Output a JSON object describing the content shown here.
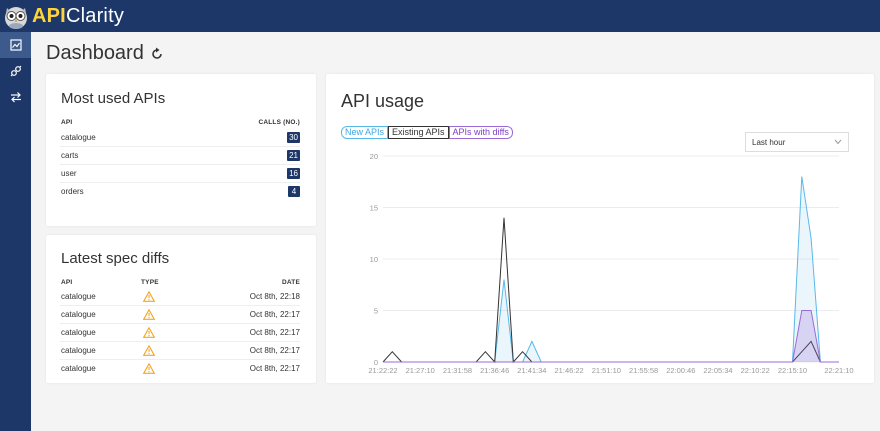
{
  "app": {
    "brand_bold": "API",
    "brand_rest": "Clarity"
  },
  "nav": [
    {
      "icon": "dashboard-icon",
      "active": true
    },
    {
      "icon": "plug-icon",
      "active": false
    },
    {
      "icon": "swap-arrows-icon",
      "active": false
    }
  ],
  "page": {
    "title": "Dashboard"
  },
  "most_used": {
    "title": "Most used APIs",
    "col_api": "API",
    "col_calls": "CALLS (NO.)",
    "rows": [
      {
        "name": "catalogue",
        "calls": "30"
      },
      {
        "name": "carts",
        "calls": "21"
      },
      {
        "name": "user",
        "calls": "16"
      },
      {
        "name": "orders",
        "calls": "4"
      }
    ]
  },
  "spec_diffs": {
    "title": "Latest spec diffs",
    "col_api": "API",
    "col_type": "TYPE",
    "col_date": "DATE",
    "rows": [
      {
        "name": "catalogue",
        "type": "warning-icon",
        "date": "Oct 8th, 22:18"
      },
      {
        "name": "catalogue",
        "type": "warning-icon",
        "date": "Oct 8th, 22:17"
      },
      {
        "name": "catalogue",
        "type": "warning-icon",
        "date": "Oct 8th, 22:17"
      },
      {
        "name": "catalogue",
        "type": "warning-icon",
        "date": "Oct 8th, 22:17"
      },
      {
        "name": "catalogue",
        "type": "warning-icon",
        "date": "Oct 8th, 22:17"
      }
    ]
  },
  "usage": {
    "title": "API usage",
    "range_selected": "Last hour",
    "legend": [
      "New APIs",
      "Existing APIs",
      "APIs with diffs"
    ]
  },
  "colors": {
    "navy": "#1d3769",
    "new": "#58b9e9",
    "existing": "#333333",
    "diffs": "#9a6bd6",
    "warning": "#f5a623"
  },
  "chart_data": {
    "type": "line",
    "x": [
      "21:22:22",
      "21:23:40",
      "21:24:58",
      "21:26:16",
      "21:27:10",
      "21:28:30",
      "21:29:50",
      "21:31:10",
      "21:31:58",
      "21:33:20",
      "21:34:40",
      "21:36:00",
      "21:36:46",
      "21:38:10",
      "21:39:30",
      "21:40:50",
      "21:41:34",
      "21:43:00",
      "21:44:20",
      "21:45:40",
      "21:46:22",
      "21:47:40",
      "21:49:00",
      "21:50:20",
      "21:51:10",
      "21:52:30",
      "21:53:50",
      "21:55:10",
      "21:55:58",
      "21:57:20",
      "21:58:40",
      "22:00:00",
      "22:00:46",
      "22:02:10",
      "22:03:30",
      "22:04:50",
      "22:05:34",
      "22:07:00",
      "22:08:20",
      "22:09:40",
      "22:10:22",
      "22:11:40",
      "22:13:00",
      "22:14:20",
      "22:15:10",
      "22:16:30",
      "22:17:50",
      "22:19:10",
      "22:20:30",
      "22:21:10"
    ],
    "x_ticks": [
      "21:22:22",
      "21:27:10",
      "21:31:58",
      "21:36:46",
      "21:41:34",
      "21:46:22",
      "21:51:10",
      "21:55:58",
      "22:00:46",
      "22:05:34",
      "22:10:22",
      "22:15:10",
      "22:21:10"
    ],
    "series": [
      {
        "name": "New APIs",
        "values": [
          0,
          0,
          0,
          0,
          0,
          0,
          0,
          0,
          0,
          0,
          0,
          0,
          0,
          8,
          0,
          0,
          2,
          0,
          0,
          0,
          0,
          0,
          0,
          0,
          0,
          0,
          0,
          0,
          0,
          0,
          0,
          0,
          0,
          0,
          0,
          0,
          0,
          0,
          0,
          0,
          0,
          0,
          0,
          0,
          0,
          18,
          12,
          0,
          0,
          0
        ]
      },
      {
        "name": "Existing APIs",
        "values": [
          0,
          1,
          0,
          0,
          0,
          0,
          0,
          0,
          0,
          0,
          0,
          1,
          0,
          14,
          0,
          1,
          0,
          0,
          0,
          0,
          0,
          0,
          0,
          0,
          0,
          0,
          0,
          0,
          0,
          0,
          0,
          0,
          0,
          0,
          0,
          0,
          0,
          0,
          0,
          0,
          0,
          0,
          0,
          0,
          0,
          1,
          2,
          0,
          0,
          0
        ]
      },
      {
        "name": "APIs with diffs",
        "values": [
          0,
          0,
          0,
          0,
          0,
          0,
          0,
          0,
          0,
          0,
          0,
          0,
          0,
          0,
          0,
          0,
          0,
          0,
          0,
          0,
          0,
          0,
          0,
          0,
          0,
          0,
          0,
          0,
          0,
          0,
          0,
          0,
          0,
          0,
          0,
          0,
          0,
          0,
          0,
          0,
          0,
          0,
          0,
          0,
          0,
          5,
          5,
          0,
          0,
          0
        ]
      }
    ],
    "y_ticks": [
      0,
      5,
      10,
      15,
      20
    ],
    "ylim": [
      0,
      20
    ],
    "grid": true,
    "legend_position": "top-left"
  }
}
